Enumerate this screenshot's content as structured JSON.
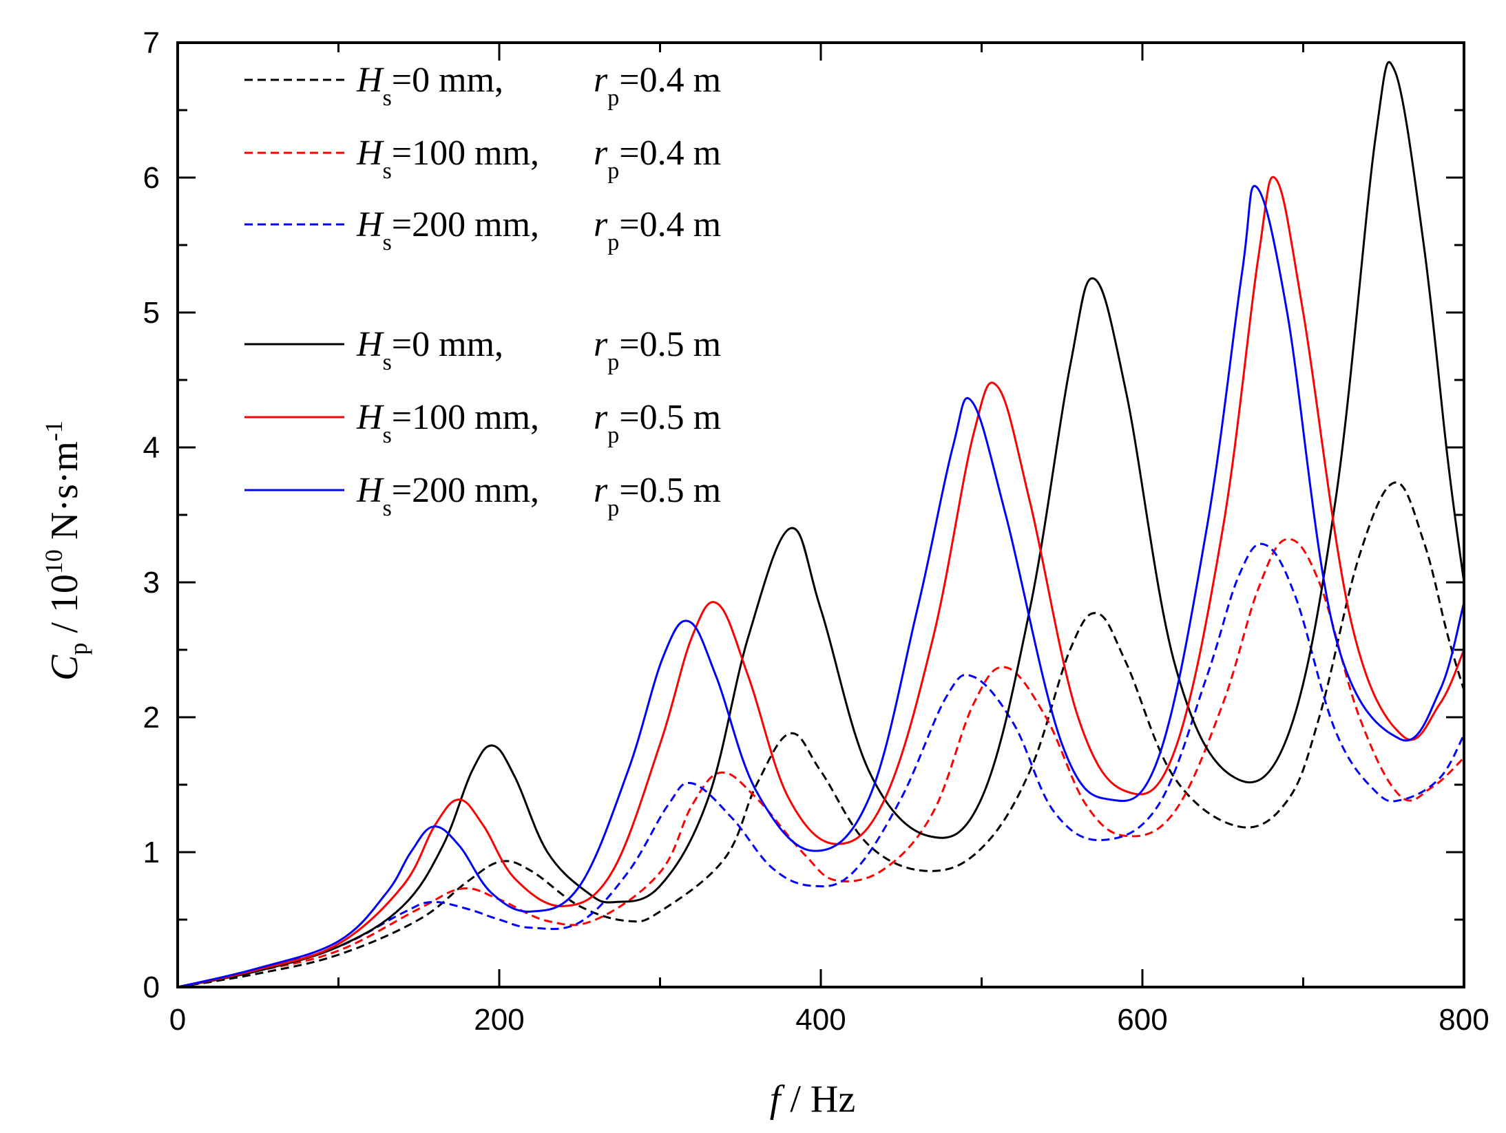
{
  "chart_data": {
    "type": "line",
    "xlabel": {
      "var": "f",
      "sep": " / ",
      "unit": "Hz"
    },
    "ylabel": {
      "var": "C",
      "sub": "p",
      "sep": " / 10",
      "exp": "10",
      "unit": " N·s·m",
      "unit_exp": "-1"
    },
    "xlim": [
      0,
      800
    ],
    "ylim": [
      0,
      7
    ],
    "xticks": [
      0,
      200,
      400,
      600,
      800
    ],
    "yticks": [
      0,
      1,
      2,
      3,
      4,
      5,
      6,
      7
    ],
    "x_tick_labels": [
      "0",
      "200",
      "400",
      "600",
      "800"
    ],
    "y_tick_labels": [
      "0",
      "1",
      "2",
      "3",
      "4",
      "5",
      "6",
      "7"
    ],
    "grid": false,
    "legend_position": "top-left",
    "series": [
      {
        "legend": {
          "h": "H",
          "hs": "s",
          "hval": "=0 mm,",
          "r": "r",
          "rs": "p",
          "rval": "=0.4 m"
        },
        "color": "#000000",
        "dash": "dashed",
        "points": [
          [
            0,
            0
          ],
          [
            50,
            0.1
          ],
          [
            100,
            0.24
          ],
          [
            150,
            0.5
          ],
          [
            180,
            0.78
          ],
          [
            201,
            0.93
          ],
          [
            220,
            0.86
          ],
          [
            250,
            0.6
          ],
          [
            280,
            0.49
          ],
          [
            300,
            0.56
          ],
          [
            340,
            0.95
          ],
          [
            360,
            1.5
          ],
          [
            381,
            1.88
          ],
          [
            400,
            1.6
          ],
          [
            430,
            1.05
          ],
          [
            467,
            0.86
          ],
          [
            500,
            1.03
          ],
          [
            530,
            1.6
          ],
          [
            555,
            2.5
          ],
          [
            572,
            2.77
          ],
          [
            590,
            2.4
          ],
          [
            620,
            1.55
          ],
          [
            660,
            1.19
          ],
          [
            690,
            1.38
          ],
          [
            710,
            2.0
          ],
          [
            735,
            3.2
          ],
          [
            757,
            3.74
          ],
          [
            775,
            3.3
          ],
          [
            790,
            2.6
          ],
          [
            800,
            2.2
          ]
        ]
      },
      {
        "legend": {
          "h": "H",
          "hs": "s",
          "hval": "=100 mm,",
          "r": "r",
          "rs": "p",
          "rval": "=0.4 m"
        },
        "color": "#ff0000",
        "dash": "dashed",
        "points": [
          [
            0,
            0
          ],
          [
            50,
            0.12
          ],
          [
            100,
            0.27
          ],
          [
            150,
            0.58
          ],
          [
            177,
            0.73
          ],
          [
            200,
            0.65
          ],
          [
            230,
            0.49
          ],
          [
            260,
            0.5
          ],
          [
            300,
            0.85
          ],
          [
            320,
            1.35
          ],
          [
            338,
            1.59
          ],
          [
            360,
            1.4
          ],
          [
            390,
            0.98
          ],
          [
            410,
            0.79
          ],
          [
            440,
            0.88
          ],
          [
            470,
            1.3
          ],
          [
            495,
            2.1
          ],
          [
            515,
            2.37
          ],
          [
            540,
            2.0
          ],
          [
            565,
            1.35
          ],
          [
            590,
            1.12
          ],
          [
            620,
            1.3
          ],
          [
            650,
            2.1
          ],
          [
            672,
            2.95
          ],
          [
            690,
            3.32
          ],
          [
            710,
            3.0
          ],
          [
            735,
            2.0
          ],
          [
            760,
            1.42
          ],
          [
            780,
            1.48
          ],
          [
            800,
            1.7
          ]
        ]
      },
      {
        "legend": {
          "h": "H",
          "hs": "s",
          "hval": "=200 mm,",
          "r": "r",
          "rs": "p",
          "rval": "=0.4 m"
        },
        "color": "#0000ff",
        "dash": "dashed",
        "points": [
          [
            0,
            0
          ],
          [
            50,
            0.13
          ],
          [
            100,
            0.3
          ],
          [
            140,
            0.55
          ],
          [
            158,
            0.63
          ],
          [
            180,
            0.58
          ],
          [
            200,
            0.5
          ],
          [
            220,
            0.44
          ],
          [
            250,
            0.48
          ],
          [
            280,
            0.85
          ],
          [
            305,
            1.35
          ],
          [
            320,
            1.51
          ],
          [
            345,
            1.25
          ],
          [
            370,
            0.88
          ],
          [
            395,
            0.75
          ],
          [
            420,
            0.85
          ],
          [
            450,
            1.4
          ],
          [
            478,
            2.15
          ],
          [
            495,
            2.3
          ],
          [
            520,
            1.95
          ],
          [
            545,
            1.3
          ],
          [
            575,
            1.09
          ],
          [
            610,
            1.35
          ],
          [
            640,
            2.3
          ],
          [
            660,
            3.05
          ],
          [
            676,
            3.28
          ],
          [
            695,
            2.9
          ],
          [
            720,
            1.9
          ],
          [
            745,
            1.45
          ],
          [
            762,
            1.39
          ],
          [
            785,
            1.55
          ],
          [
            800,
            1.87
          ]
        ]
      },
      {
        "legend": {
          "h": "H",
          "hs": "s",
          "hval": "=0 mm,",
          "r": "r",
          "rs": "p",
          "rval": "=0.5 m"
        },
        "color": "#000000",
        "dash": "solid",
        "points": [
          [
            0,
            0
          ],
          [
            50,
            0.12
          ],
          [
            100,
            0.3
          ],
          [
            140,
            0.6
          ],
          [
            165,
            1.05
          ],
          [
            183,
            1.6
          ],
          [
            196,
            1.79
          ],
          [
            210,
            1.55
          ],
          [
            230,
            1.0
          ],
          [
            255,
            0.7
          ],
          [
            272,
            0.63
          ],
          [
            300,
            0.75
          ],
          [
            330,
            1.4
          ],
          [
            355,
            2.6
          ],
          [
            381,
            3.4
          ],
          [
            400,
            2.8
          ],
          [
            430,
            1.6
          ],
          [
            467,
            1.12
          ],
          [
            500,
            1.4
          ],
          [
            530,
            2.8
          ],
          [
            555,
            4.6
          ],
          [
            570,
            5.25
          ],
          [
            590,
            4.4
          ],
          [
            620,
            2.4
          ],
          [
            655,
            1.57
          ],
          [
            690,
            1.85
          ],
          [
            720,
            3.6
          ],
          [
            745,
            6.3
          ],
          [
            757,
            6.79
          ],
          [
            775,
            5.5
          ],
          [
            790,
            3.9
          ],
          [
            800,
            3.0
          ]
        ]
      },
      {
        "legend": {
          "h": "H",
          "hs": "s",
          "hval": "=100 mm,",
          "r": "r",
          "rs": "p",
          "rval": "=0.5 m"
        },
        "color": "#ff0000",
        "dash": "solid",
        "points": [
          [
            0,
            0
          ],
          [
            50,
            0.13
          ],
          [
            100,
            0.32
          ],
          [
            140,
            0.75
          ],
          [
            160,
            1.2
          ],
          [
            175,
            1.39
          ],
          [
            190,
            1.2
          ],
          [
            210,
            0.8
          ],
          [
            240,
            0.6
          ],
          [
            270,
            0.85
          ],
          [
            300,
            1.8
          ],
          [
            320,
            2.6
          ],
          [
            336,
            2.84
          ],
          [
            355,
            2.3
          ],
          [
            380,
            1.4
          ],
          [
            410,
            1.06
          ],
          [
            440,
            1.4
          ],
          [
            470,
            2.6
          ],
          [
            495,
            4.1
          ],
          [
            510,
            4.45
          ],
          [
            530,
            3.6
          ],
          [
            560,
            2.0
          ],
          [
            590,
            1.45
          ],
          [
            620,
            1.75
          ],
          [
            650,
            3.4
          ],
          [
            672,
            5.4
          ],
          [
            683,
            5.99
          ],
          [
            700,
            5.0
          ],
          [
            730,
            2.7
          ],
          [
            762,
            1.86
          ],
          [
            785,
            2.1
          ],
          [
            800,
            2.5
          ]
        ]
      },
      {
        "legend": {
          "h": "H",
          "hs": "s",
          "hval": "=200 mm,",
          "r": "r",
          "rs": "p",
          "rval": "=0.5 m"
        },
        "color": "#0000ff",
        "dash": "solid",
        "points": [
          [
            0,
            0
          ],
          [
            50,
            0.14
          ],
          [
            100,
            0.34
          ],
          [
            130,
            0.7
          ],
          [
            145,
            1.0
          ],
          [
            159,
            1.19
          ],
          [
            175,
            1.05
          ],
          [
            195,
            0.7
          ],
          [
            220,
            0.56
          ],
          [
            250,
            0.75
          ],
          [
            280,
            1.6
          ],
          [
            302,
            2.45
          ],
          [
            318,
            2.71
          ],
          [
            335,
            2.3
          ],
          [
            360,
            1.45
          ],
          [
            395,
            1.01
          ],
          [
            430,
            1.4
          ],
          [
            460,
            2.8
          ],
          [
            482,
            4.0
          ],
          [
            494,
            4.34
          ],
          [
            515,
            3.5
          ],
          [
            550,
            1.8
          ],
          [
            580,
            1.39
          ],
          [
            610,
            1.7
          ],
          [
            640,
            3.4
          ],
          [
            662,
            5.3
          ],
          [
            671,
            5.93
          ],
          [
            690,
            5.0
          ],
          [
            720,
            2.6
          ],
          [
            760,
            1.84
          ],
          [
            785,
            2.2
          ],
          [
            800,
            2.85
          ]
        ]
      }
    ]
  }
}
